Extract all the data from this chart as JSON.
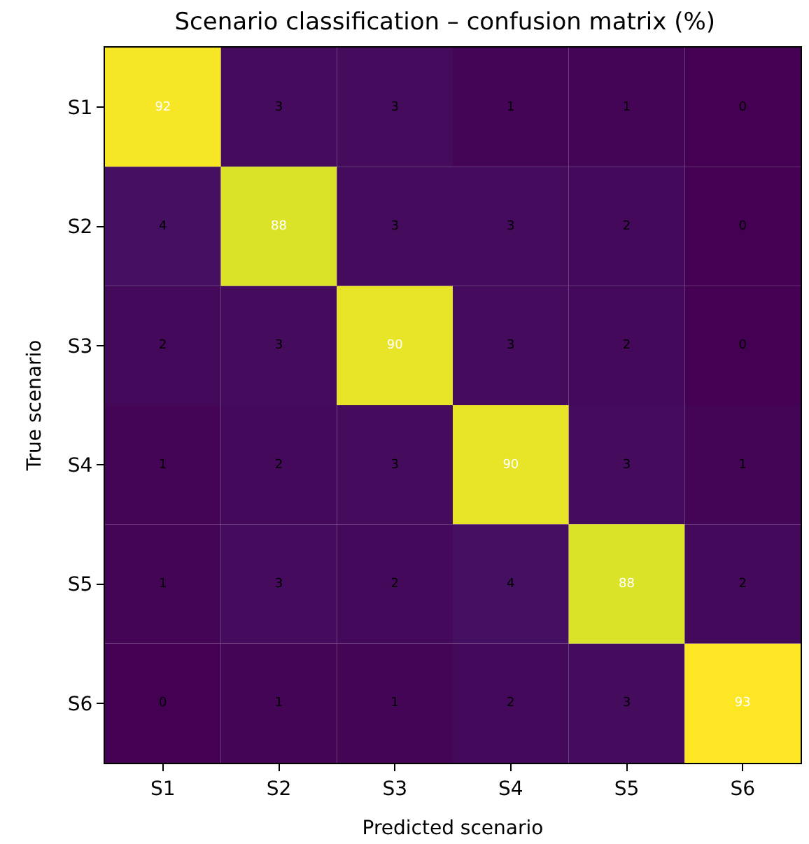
{
  "chart_data": {
    "type": "heatmap",
    "title": "Scenario classification – confusion matrix (%)",
    "xlabel": "Predicted scenario",
    "ylabel": "True scenario",
    "categories": [
      "S1",
      "S2",
      "S3",
      "S4",
      "S5",
      "S6"
    ],
    "y_categories": [
      "S1",
      "S2",
      "S3",
      "S4",
      "S5",
      "S6"
    ],
    "cells": [
      [
        92,
        3,
        3,
        1,
        1,
        0
      ],
      [
        4,
        88,
        3,
        3,
        2,
        0
      ],
      [
        2,
        3,
        90,
        3,
        2,
        0
      ],
      [
        1,
        2,
        3,
        90,
        3,
        1
      ],
      [
        1,
        3,
        2,
        4,
        88,
        2
      ],
      [
        0,
        1,
        1,
        2,
        3,
        93
      ]
    ],
    "data_labels": true
  }
}
